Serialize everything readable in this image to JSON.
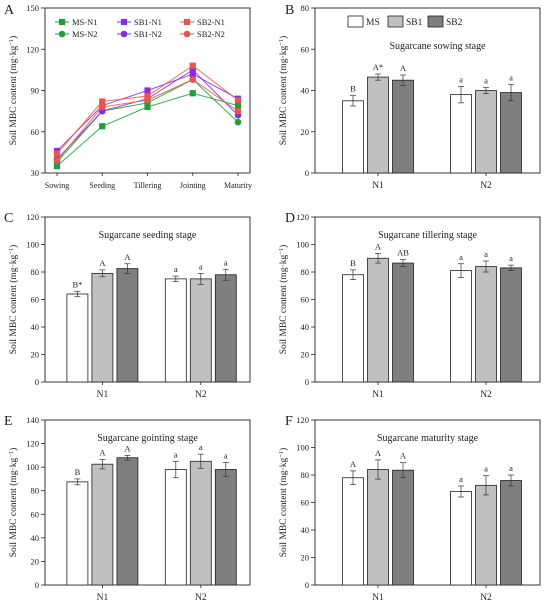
{
  "chart_data": [
    {
      "panel": "A",
      "type": "line",
      "title": "",
      "xlabel": "",
      "ylabel": "Soil MBC content (mg·kg",
      "ylabel_sup": "−1",
      "ylabel_close": ")",
      "ylim": [
        30,
        150
      ],
      "yticks": [
        30,
        60,
        90,
        120,
        150
      ],
      "categories": [
        "Sowing",
        "Seeding",
        "Tillering",
        "Jointing",
        "Maturity"
      ],
      "legend_position": "top",
      "series": [
        {
          "name": "MS-N1",
          "color": "#1f9e3a",
          "marker": "square",
          "values": [
            35,
            64,
            78,
            88,
            79
          ]
        },
        {
          "name": "MS-N2",
          "color": "#1f9e3a",
          "marker": "circle",
          "values": [
            38,
            75,
            81,
            98,
            67
          ]
        },
        {
          "name": "SB1-N1",
          "color": "#8a2be2",
          "marker": "square",
          "values": [
            46,
            79,
            90,
            102,
            84
          ]
        },
        {
          "name": "SB1-N2",
          "color": "#8a2be2",
          "marker": "circle",
          "values": [
            40,
            75,
            84,
            105,
            72
          ]
        },
        {
          "name": "SB2-N1",
          "color": "#e8554e",
          "marker": "square",
          "values": [
            44,
            82,
            86,
            108,
            83
          ]
        },
        {
          "name": "SB2-N2",
          "color": "#e8554e",
          "marker": "circle",
          "values": [
            39,
            78,
            83,
            98,
            75
          ]
        }
      ]
    },
    {
      "panel": "B",
      "type": "bar",
      "title": "Sugarcane sowing stage",
      "ylabel": "Soil MBC content (mg·kg",
      "ylabel_sup": "−1",
      "ylabel_close": ")",
      "ylim": [
        0,
        80
      ],
      "yticks": [
        0,
        20,
        40,
        60,
        80
      ],
      "categories": [
        "N1",
        "N2"
      ],
      "legend": [
        "MS",
        "SB1",
        "SB2"
      ],
      "series": [
        {
          "name": "MS",
          "color": "#ffffff",
          "values": [
            35,
            38
          ],
          "errors": [
            2.5,
            4
          ],
          "letters": [
            "B",
            "a"
          ]
        },
        {
          "name": "SB1",
          "color": "#c0c0c0",
          "values": [
            46.5,
            40
          ],
          "errors": [
            1.5,
            1.5
          ],
          "letters": [
            "A*",
            "a"
          ]
        },
        {
          "name": "SB2",
          "color": "#7f7f7f",
          "values": [
            45,
            39
          ],
          "errors": [
            2.5,
            4
          ],
          "letters": [
            "A",
            "a"
          ]
        }
      ]
    },
    {
      "panel": "C",
      "type": "bar",
      "title": "Sugarcane seeding stage",
      "ylabel": "Soil MBC content (mg·kg",
      "ylabel_sup": "−1",
      "ylabel_close": ")",
      "ylim": [
        0,
        120
      ],
      "yticks": [
        0,
        20,
        40,
        60,
        80,
        100,
        120
      ],
      "categories": [
        "N1",
        "N2"
      ],
      "series": [
        {
          "name": "MS",
          "color": "#ffffff",
          "values": [
            64,
            75
          ],
          "errors": [
            2,
            2
          ],
          "letters": [
            "B*",
            "a"
          ]
        },
        {
          "name": "SB1",
          "color": "#c0c0c0",
          "values": [
            79,
            75
          ],
          "errors": [
            2.5,
            4
          ],
          "letters": [
            "A",
            "a"
          ]
        },
        {
          "name": "SB2",
          "color": "#7f7f7f",
          "values": [
            82.5,
            78
          ],
          "errors": [
            3.5,
            4
          ],
          "letters": [
            "A",
            "a"
          ]
        }
      ]
    },
    {
      "panel": "D",
      "type": "bar",
      "title": "Sugarcane tillering stage",
      "ylabel": "Soil MBC content (mg·kg",
      "ylabel_sup": "−1",
      "ylabel_close": ")",
      "ylim": [
        0,
        120
      ],
      "yticks": [
        0,
        20,
        40,
        60,
        80,
        100,
        120
      ],
      "categories": [
        "N1",
        "N2"
      ],
      "series": [
        {
          "name": "MS",
          "color": "#ffffff",
          "values": [
            78,
            81
          ],
          "errors": [
            3.5,
            5
          ],
          "letters": [
            "B",
            "a"
          ]
        },
        {
          "name": "SB1",
          "color": "#c0c0c0",
          "values": [
            90,
            84
          ],
          "errors": [
            3.5,
            4
          ],
          "letters": [
            "A",
            "a"
          ]
        },
        {
          "name": "SB2",
          "color": "#7f7f7f",
          "values": [
            86.5,
            83
          ],
          "errors": [
            2.5,
            2
          ],
          "letters": [
            "AB",
            "a"
          ]
        }
      ]
    },
    {
      "panel": "E",
      "type": "bar",
      "title": "Sugarcane gointing stage",
      "ylabel": "Soil MBC content (mg·kg",
      "ylabel_sup": "−1",
      "ylabel_close": ")",
      "ylim": [
        0,
        140
      ],
      "yticks": [
        0,
        20,
        40,
        60,
        80,
        100,
        120,
        140
      ],
      "categories": [
        "N1",
        "N2"
      ],
      "series": [
        {
          "name": "MS",
          "color": "#ffffff",
          "values": [
            87.5,
            98
          ],
          "errors": [
            2.5,
            7
          ],
          "letters": [
            "B",
            "a"
          ]
        },
        {
          "name": "SB1",
          "color": "#c0c0c0",
          "values": [
            102.5,
            105
          ],
          "errors": [
            4,
            6
          ],
          "letters": [
            "A",
            "a"
          ]
        },
        {
          "name": "SB2",
          "color": "#7f7f7f",
          "values": [
            108,
            98
          ],
          "errors": [
            2,
            6
          ],
          "letters": [
            "A",
            "a"
          ]
        }
      ]
    },
    {
      "panel": "F",
      "type": "bar",
      "title": "Sugarcane maturity stage",
      "ylabel": "Soil MBC content (mg·kg",
      "ylabel_sup": "−1",
      "ylabel_close": ")",
      "ylim": [
        0,
        120
      ],
      "yticks": [
        0,
        20,
        40,
        60,
        80,
        100,
        120
      ],
      "categories": [
        "N1",
        "N2"
      ],
      "series": [
        {
          "name": "MS",
          "color": "#ffffff",
          "values": [
            78,
            68
          ],
          "errors": [
            5,
            4
          ],
          "letters": [
            "A",
            "a"
          ]
        },
        {
          "name": "SB1",
          "color": "#c0c0c0",
          "values": [
            84,
            72.5
          ],
          "errors": [
            7,
            7
          ],
          "letters": [
            "A",
            "a"
          ]
        },
        {
          "name": "SB2",
          "color": "#7f7f7f",
          "values": [
            83.5,
            76
          ],
          "errors": [
            5.5,
            4
          ],
          "letters": [
            "A",
            "a"
          ]
        }
      ]
    }
  ]
}
